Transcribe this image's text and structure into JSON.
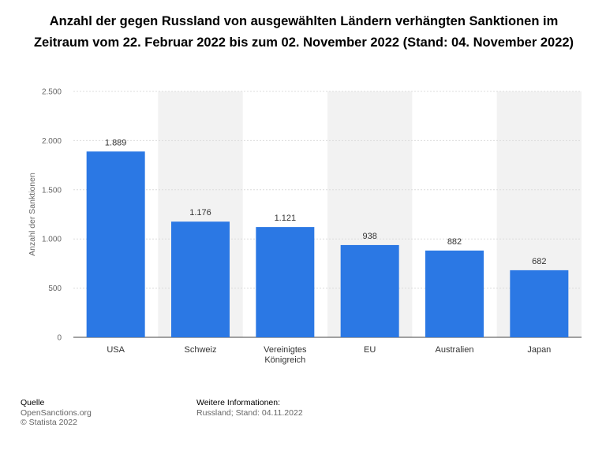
{
  "chart_data": {
    "type": "bar",
    "title": "Anzahl der gegen Russland von ausgewählten Ländern verhängten Sanktionen im Zeitraum vom 22. Februar 2022 bis zum 02. November 2022 (Stand: 04. November 2022)",
    "ylabel": "Anzahl der Sanktionen",
    "xlabel": "",
    "categories": [
      "USA",
      "Schweiz",
      "Vereinigtes Königreich",
      "EU",
      "Australien",
      "Japan"
    ],
    "category_lines": [
      [
        "USA"
      ],
      [
        "Schweiz"
      ],
      [
        "Vereinigtes",
        "Königreich"
      ],
      [
        "EU"
      ],
      [
        "Australien"
      ],
      [
        "Japan"
      ]
    ],
    "values": [
      1889,
      1176,
      1121,
      938,
      882,
      682
    ],
    "value_labels": [
      "1.889",
      "1.176",
      "1.121",
      "938",
      "882",
      "682"
    ],
    "ylim": [
      0,
      2500
    ],
    "yticks": [
      0,
      500,
      1000,
      1500,
      2000,
      2500
    ],
    "ytick_labels": [
      "0",
      "500",
      "1.000",
      "1.500",
      "2.000",
      "2.500"
    ],
    "grid": true,
    "bar_color": "#2b78e4",
    "band_color": "#f2f2f2"
  },
  "footer": {
    "source_heading": "Quelle",
    "source_lines": [
      "OpenSanctions.org",
      "© Statista 2022"
    ],
    "info_heading": "Weitere Informationen:",
    "info_lines": [
      "Russland; Stand: 04.11.2022"
    ]
  }
}
